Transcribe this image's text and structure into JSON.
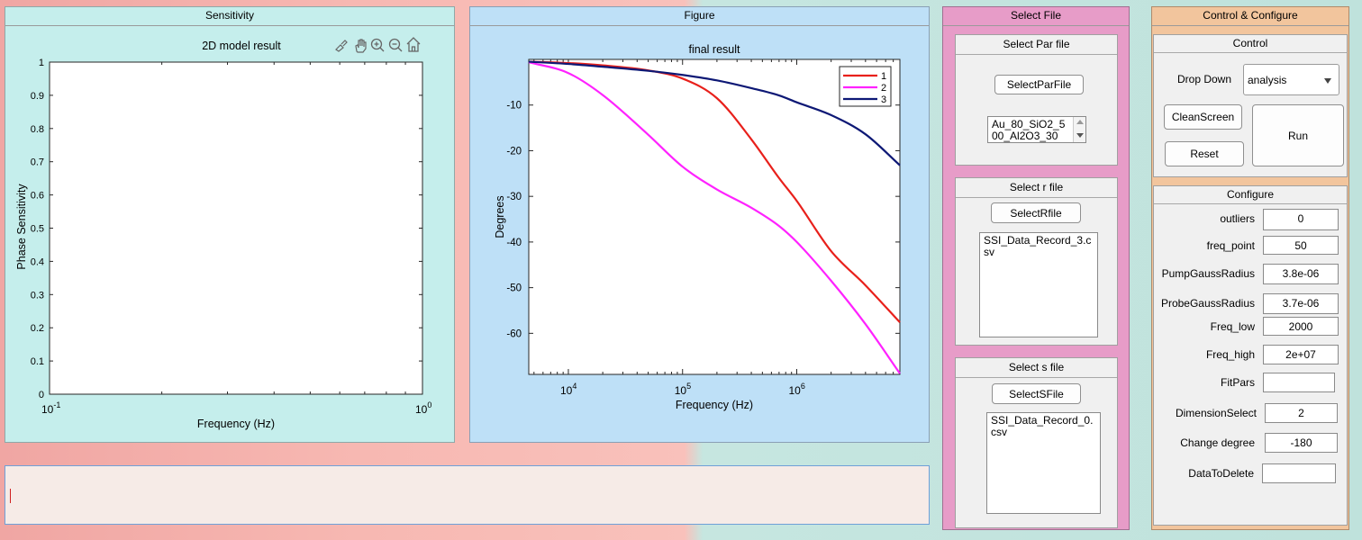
{
  "sensitivity": {
    "panel_title": "Sensitivity",
    "chart_title": "2D model result",
    "xlabel": "Frequency (Hz)",
    "ylabel": "Phase Sensitivity",
    "yticks": [
      "0",
      "0.1",
      "0.2",
      "0.3",
      "0.4",
      "0.5",
      "0.6",
      "0.7",
      "0.8",
      "0.9",
      "1"
    ],
    "x_tick_left_base": "10",
    "x_tick_left_exp": "-1",
    "x_tick_right_base": "10",
    "x_tick_right_exp": "0"
  },
  "figure": {
    "panel_title": "Figure",
    "chart_title": "final result",
    "xlabel": "Frequency (Hz)",
    "ylabel": "Degrees",
    "yticks": [
      "-10",
      "-20",
      "-30",
      "-40",
      "-50",
      "-60"
    ],
    "xticks": [
      {
        "base": "10",
        "exp": "4"
      },
      {
        "base": "10",
        "exp": "5"
      },
      {
        "base": "10",
        "exp": "6"
      }
    ],
    "legend": [
      "1",
      "2",
      "3"
    ]
  },
  "chart_data": [
    {
      "type": "line",
      "title": "2D model result",
      "xlabel": "Frequency (Hz)",
      "ylabel": "Phase Sensitivity",
      "xscale": "log",
      "xlim": [
        0.1,
        1
      ],
      "ylim": [
        0,
        1
      ],
      "series": []
    },
    {
      "type": "line",
      "title": "final result",
      "xlabel": "Frequency (Hz)",
      "ylabel": "Degrees",
      "xscale": "log",
      "xlim": [
        4500,
        8000000
      ],
      "ylim": [
        -69,
        0
      ],
      "legend_position": "top-right",
      "x": [
        4500,
        10000,
        20000,
        50000,
        100000,
        200000,
        400000,
        700000,
        1000000,
        2000000,
        4000000,
        8000000
      ],
      "series": [
        {
          "name": "1",
          "color": "#e8201b",
          "values": [
            -0.5,
            -0.8,
            -1.3,
            -2.4,
            -4.2,
            -8.5,
            -17.5,
            -26,
            -31,
            -42,
            -49.5,
            -57.6
          ]
        },
        {
          "name": "2",
          "color": "#ff22ff",
          "values": [
            -0.6,
            -3.0,
            -7.8,
            -16.5,
            -23.5,
            -28.5,
            -32.5,
            -36.5,
            -40,
            -48.5,
            -58,
            -68.8
          ]
        },
        {
          "name": "3",
          "color": "#0d1875",
          "values": [
            -0.5,
            -1.0,
            -1.6,
            -2.5,
            -3.4,
            -4.6,
            -6.3,
            -7.9,
            -9.4,
            -12.2,
            -16.4,
            -23.2
          ]
        }
      ]
    }
  ],
  "command_box": {
    "value": ""
  },
  "select_file": {
    "panel_title": "Select File",
    "par": {
      "title": "Select Par file",
      "button": "SelectParFile",
      "list_text": "Au_80_SiO2_500_Al2O3_30"
    },
    "r": {
      "title": "Select r file",
      "button": "SelectRfile",
      "list_text": "SSI_Data_Record_3.csv"
    },
    "s": {
      "title": "Select s file",
      "button": "SelectSFile",
      "list_text": "SSI_Data_Record_0.csv"
    }
  },
  "control_configure": {
    "panel_title": "Control & Configure",
    "control": {
      "title": "Control",
      "dropdown_label": "Drop Down",
      "dropdown_value": "analysis",
      "clean_button": "CleanScreen",
      "reset_button": "Reset",
      "run_button": "Run"
    },
    "configure": {
      "title": "Configure",
      "fields": [
        {
          "label": "outliers",
          "value": "0"
        },
        {
          "label": "freq_point",
          "value": "50"
        },
        {
          "label": "PumpGaussRadius",
          "value": "3.8e-06"
        },
        {
          "label": "ProbeGaussRadius",
          "value": "3.7e-06"
        },
        {
          "label": "Freq_low",
          "value": "2000"
        },
        {
          "label": "Freq_high",
          "value": "2e+07"
        },
        {
          "label": "FitPars",
          "value": ""
        },
        {
          "label": "DimensionSelect",
          "value": "2"
        },
        {
          "label": "Change degree",
          "value": "-180"
        },
        {
          "label": "DataToDelete",
          "value": ""
        }
      ]
    }
  },
  "colors": {
    "sensitivity_panel": "#c5eeec",
    "figure_panel": "#bee0f7",
    "select_file_panel": "#e79cc8",
    "control_panel": "#f2c59d",
    "line1": "#e8201b",
    "line2": "#ff22ff",
    "line3": "#0d1875"
  }
}
